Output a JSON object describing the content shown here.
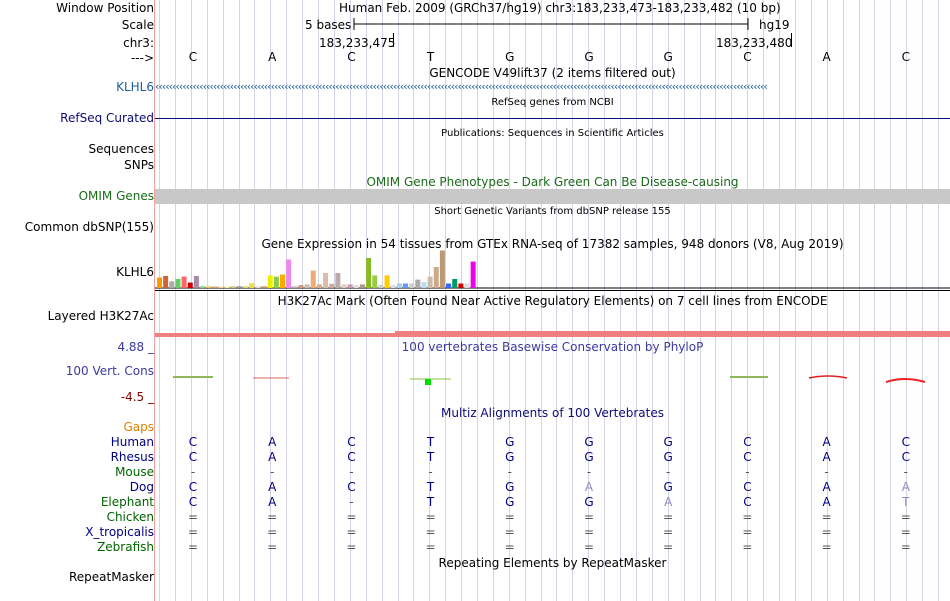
{
  "header": {
    "window_position_label": "Window Position",
    "assembly_text": "Human Feb. 2009 (GRCh37/hg19)   chr3:183,233,473-183,233,482 (10 bp)",
    "scale_label": "Scale",
    "scale_text": "5 bases",
    "assembly_short": "hg19",
    "chrom_label": "chr3:",
    "coord_left": "183,233,475",
    "coord_right": "183,233,480",
    "strand_label": "--->"
  },
  "bases": [
    "C",
    "A",
    "C",
    "T",
    "G",
    "G",
    "G",
    "C",
    "A",
    "C"
  ],
  "tracks": {
    "gencode_title": "GENCODE V49lift37 (2 items filtered out)",
    "klhl6_label": "KLHL6",
    "refseq_title": "RefSeq genes from NCBI",
    "refseq_label": "RefSeq Curated",
    "publications_title": "Publications: Sequences in Scientific Articles",
    "sequences_label": "Sequences",
    "snps_label": "SNPs",
    "omim_title": "OMIM Gene Phenotypes - Dark Green Can Be Disease-causing",
    "omim_label": "OMIM Genes",
    "dbsnp_title": "Short Genetic Variants from dbSNP release 155",
    "dbsnp_label": "Common dbSNP(155)",
    "gtex_title": "Gene Expression in 54 tissues from GTEx RNA-seq of 17382 samples, 948 donors (V8, Aug 2019)",
    "gtex_label": "KLHL6",
    "h3k27_title": "H3K27Ac Mark (Often Found Near Active Regulatory Elements) on 7 cell lines from ENCODE",
    "h3k27_label": "Layered H3K27Ac",
    "phylop_title": "100 vertebrates Basewise Conservation by PhyloP",
    "phylop_max": "4.88 _",
    "phylop_label": "100 Vert. Cons",
    "phylop_min": "-4.5 _",
    "multiz_title": "Multiz Alignments of 100 Vertebrates",
    "gaps_label": "Gaps",
    "repeat_title": "Repeating Elements by RepeatMasker",
    "repeat_label": "RepeatMasker"
  },
  "gtex_bars": [
    {
      "color": "#ff9900",
      "level": 0.35
    },
    {
      "color": "#cc6633",
      "level": 0.4
    },
    {
      "color": "#aaaaaa",
      "level": 0.22
    },
    {
      "color": "#66cc66",
      "level": 0.3
    },
    {
      "color": "#ff6666",
      "level": 0.38
    },
    {
      "color": "#cc0000",
      "level": 0.18
    },
    {
      "color": "#aa88aa",
      "level": 0.4
    },
    {
      "color": "#99cc99",
      "level": 0.06
    },
    {
      "color": "#ddcc66",
      "level": 0.06
    },
    {
      "color": "#ccaa88",
      "level": 0.05
    },
    {
      "color": "#ffcc99",
      "level": 0.05
    },
    {
      "color": "#eeee99",
      "level": 0.05
    },
    {
      "color": "#cccc66",
      "level": 0.06
    },
    {
      "color": "#999999",
      "level": 0.06
    },
    {
      "color": "#dddd55",
      "level": 0.06
    },
    {
      "color": "#eedd44",
      "level": 0.16
    },
    {
      "color": "#dddddd",
      "level": 0.06
    },
    {
      "color": "#cc9966",
      "level": 0.06
    },
    {
      "color": "#eeee00",
      "level": 0.42
    },
    {
      "color": "#88cc44",
      "level": 0.38
    },
    {
      "color": "#ffaa00",
      "level": 0.45
    },
    {
      "color": "#ee88ee",
      "level": 0.95
    },
    {
      "color": "#bbbbbb",
      "level": 0.06
    },
    {
      "color": "#cc9988",
      "level": 0.1
    },
    {
      "color": "#ccbbaa",
      "level": 0.12
    },
    {
      "color": "#eeaa77",
      "level": 0.58
    },
    {
      "color": "#ddaa88",
      "level": 0.12
    },
    {
      "color": "#ddbbaa",
      "level": 0.5
    },
    {
      "color": "#ccaa99",
      "level": 0.14
    },
    {
      "color": "#bbaaaa",
      "level": 0.5
    },
    {
      "color": "#ddccbb",
      "level": 0.12
    },
    {
      "color": "#cc99aa",
      "level": 0.12
    },
    {
      "color": "#dddddd",
      "level": 0.1
    },
    {
      "color": "#aa9988",
      "level": 0.12
    },
    {
      "color": "#88bb22",
      "level": 1.0
    },
    {
      "color": "#99cc44",
      "level": 0.42
    },
    {
      "color": "#cccccc",
      "level": 0.1
    },
    {
      "color": "#ffcc00",
      "level": 0.42
    },
    {
      "color": "#dddddd",
      "level": 0.1
    },
    {
      "color": "#aaccee",
      "level": 0.15
    },
    {
      "color": "#6699ff",
      "level": 0.15
    },
    {
      "color": "#cccccc",
      "level": 0.15
    },
    {
      "color": "#aaaaaa",
      "level": 0.28
    },
    {
      "color": "#bbddee",
      "level": 0.2
    },
    {
      "color": "#ccbbaa",
      "level": 0.38
    },
    {
      "color": "#ccaa88",
      "level": 0.7
    },
    {
      "color": "#bb9977",
      "level": 1.25
    },
    {
      "color": "#3366ff",
      "level": 0.15
    },
    {
      "color": "#009966",
      "level": 0.3
    },
    {
      "color": "#cc0000",
      "level": 0.15
    },
    {
      "color": "#dddddd",
      "level": 0.15
    },
    {
      "color": "#ee00ee",
      "level": 0.88
    }
  ],
  "species": [
    {
      "name": "Human",
      "color": "#000080",
      "bases": [
        "C",
        "A",
        "C",
        "T",
        "G",
        "G",
        "G",
        "C",
        "A",
        "C"
      ],
      "faded": []
    },
    {
      "name": "Rhesus",
      "color": "#000080",
      "bases": [
        "C",
        "A",
        "C",
        "T",
        "G",
        "G",
        "G",
        "C",
        "A",
        "C"
      ],
      "faded": []
    },
    {
      "name": "Mouse",
      "color": "#006400",
      "bases": [
        "-",
        "-",
        "-",
        "-",
        "-",
        "-",
        "-",
        "-",
        "-",
        "-"
      ],
      "faded": []
    },
    {
      "name": "Dog",
      "color": "#000080",
      "bases": [
        "C",
        "A",
        "C",
        "T",
        "G",
        "A",
        "G",
        "C",
        "A",
        "A"
      ],
      "faded": [
        5,
        9
      ]
    },
    {
      "name": "Elephant",
      "color": "#006400",
      "bases": [
        "C",
        "A",
        "-",
        "T",
        "G",
        "G",
        "A",
        "C",
        "A",
        "T"
      ],
      "faded": [
        6,
        9
      ]
    },
    {
      "name": "Chicken",
      "color": "#006400",
      "bases": [
        "=",
        "=",
        "=",
        "=",
        "=",
        "=",
        "=",
        "=",
        "=",
        "="
      ],
      "faded": []
    },
    {
      "name": "X_tropicalis",
      "color": "#000080",
      "bases": [
        "=",
        "=",
        "=",
        "=",
        "=",
        "=",
        "=",
        "=",
        "=",
        "="
      ],
      "faded": []
    },
    {
      "name": "Zebrafish",
      "color": "#006400",
      "bases": [
        "=",
        "=",
        "=",
        "=",
        "=",
        "=",
        "=",
        "=",
        "=",
        "="
      ],
      "faded": []
    }
  ],
  "colors": {
    "gencode": "#1c5f99",
    "refseq": "#0c0c78",
    "omim": "#1a6b1a",
    "omim_bar": "#c8c8c8",
    "phylop_title": "#3a3aa0",
    "phylop_max": "#3a3aa0",
    "phylop_min": "#8b0000",
    "multiz": "#0c0c78",
    "gaps": "#e08000",
    "h3k27": "#f08080"
  }
}
